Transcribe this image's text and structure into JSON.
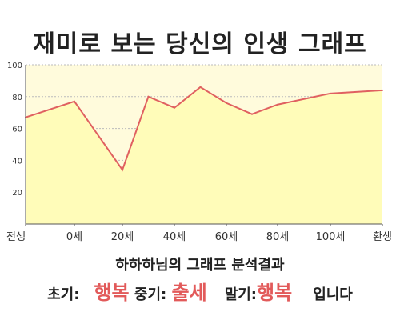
{
  "chart_data": {
    "type": "area",
    "title": "재미로 보는 당신의 인생 그래프",
    "x_ticks": [
      "전생",
      "0세",
      "20세",
      "40세",
      "60세",
      "80세",
      "100세",
      "환생"
    ],
    "y_ticks": [
      "20",
      "40",
      "60",
      "80",
      "100"
    ],
    "ylim": [
      0,
      100
    ],
    "grid": true,
    "colors": {
      "line": "#e06060",
      "fill": "#fffcb9",
      "fill_top": "#fffbdc"
    },
    "points": [
      {
        "x": "전생",
        "y": 67
      },
      {
        "x": "0세",
        "y": 77
      },
      {
        "x": "20세",
        "y": 34
      },
      {
        "x": "30세",
        "y": 80
      },
      {
        "x": "40세",
        "y": 73
      },
      {
        "x": "50세",
        "y": 86
      },
      {
        "x": "60세",
        "y": 76
      },
      {
        "x": "70세",
        "y": 69
      },
      {
        "x": "80세",
        "y": 75
      },
      {
        "x": "100세",
        "y": 82
      },
      {
        "x": "환생",
        "y": 84
      }
    ]
  },
  "summary": "하하하님의 그래프 분석결과",
  "result": {
    "early_label": "초기:",
    "early_value": "행복",
    "mid_label": "중기:",
    "mid_value": "출세",
    "late_label": "말기:",
    "late_value": "행복",
    "ending": "입니다"
  }
}
